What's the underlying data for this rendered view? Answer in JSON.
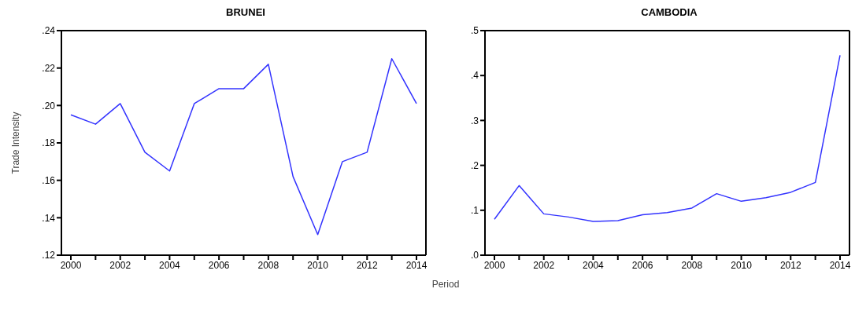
{
  "chart_data": [
    {
      "type": "line",
      "title": "BRUNEI",
      "ylabel": "Trade Intensity",
      "xlabel": "Period",
      "categories": [
        "2000",
        null,
        "2002",
        null,
        "2004",
        null,
        "2006",
        null,
        "2008",
        null,
        "2010",
        null,
        "2012",
        null,
        "2014"
      ],
      "series": [
        {
          "color": "#3333ff",
          "values": [
            0.195,
            0.19,
            0.201,
            0.175,
            0.165,
            0.201,
            0.209,
            0.209,
            0.222,
            0.162,
            0.131,
            0.17,
            0.175,
            0.225,
            0.201
          ]
        }
      ],
      "ylim": [
        0.12,
        0.24
      ],
      "yticks": [
        {
          "value": 0.12,
          "label": ".12"
        },
        {
          "value": 0.14,
          "label": ".14"
        },
        {
          "value": 0.16,
          "label": ".16"
        },
        {
          "value": 0.18,
          "label": ".18"
        },
        {
          "value": 0.2,
          "label": ".20"
        },
        {
          "value": 0.22,
          "label": ".22"
        },
        {
          "value": 0.24,
          "label": ".24"
        }
      ],
      "grid": false,
      "legend": false,
      "marker": "none",
      "line_style": "solid"
    },
    {
      "type": "line",
      "title": "CAMBODIA",
      "categories": [
        "2000",
        null,
        "2002",
        null,
        "2004",
        null,
        "2006",
        null,
        "2008",
        null,
        "2010",
        null,
        "2012",
        null,
        "2014"
      ],
      "series": [
        {
          "color": "#3333ff",
          "values": [
            0.08,
            0.155,
            0.092,
            0.085,
            0.075,
            0.077,
            0.09,
            0.095,
            0.105,
            0.137,
            0.12,
            0.128,
            0.14,
            0.162,
            0.445
          ]
        }
      ],
      "ylim": [
        0,
        0.5
      ],
      "yticks": [
        {
          "value": 0,
          "label": ".0"
        },
        {
          "value": 0.1,
          "label": ".1"
        },
        {
          "value": 0.2,
          "label": ".2"
        },
        {
          "value": 0.3,
          "label": ".3"
        },
        {
          "value": 0.4,
          "label": ".4"
        },
        {
          "value": 0.5,
          "label": ".5"
        }
      ],
      "grid": false,
      "legend": false,
      "marker": "none",
      "line_style": "solid"
    }
  ]
}
